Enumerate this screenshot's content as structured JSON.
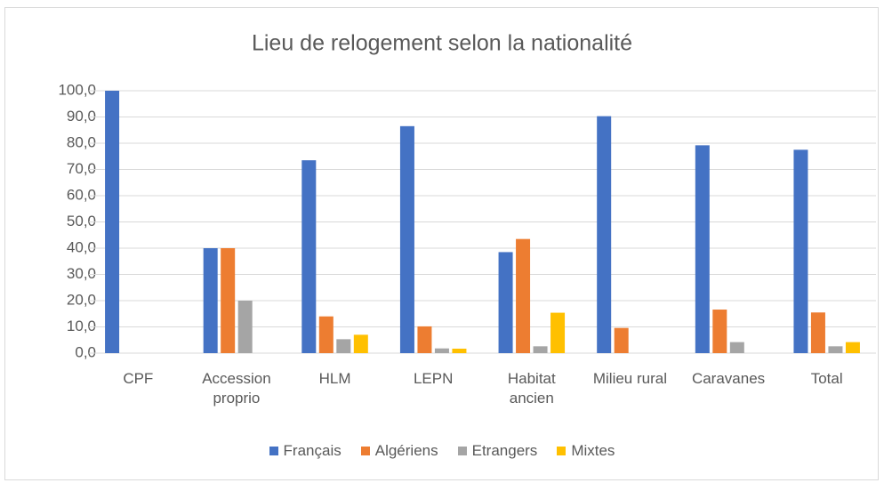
{
  "chart_data": {
    "type": "bar",
    "title": "Lieu de relogement selon la nationalité",
    "categories": [
      "CPF",
      "Accession proprio",
      "HLM",
      "LEPN",
      "Habitat ancien",
      "Milieu rural",
      "Caravanes",
      "Total"
    ],
    "series": [
      {
        "name": "Français",
        "color": "#4472c4",
        "values": [
          100,
          40,
          73.5,
          86.5,
          38.5,
          90.3,
          79.2,
          77.5
        ]
      },
      {
        "name": "Algériens",
        "color": "#ed7d31",
        "values": [
          0,
          40,
          14,
          10.2,
          43.5,
          9.6,
          16.6,
          15.5
        ]
      },
      {
        "name": "Etrangers",
        "color": "#a5a5a5",
        "values": [
          0,
          20,
          5.3,
          1.8,
          2.6,
          0,
          4.2,
          2.6
        ]
      },
      {
        "name": "Mixtes",
        "color": "#ffc000",
        "values": [
          0,
          0,
          7,
          1.7,
          15.4,
          0,
          0,
          4.2
        ]
      }
    ],
    "ylim": [
      0,
      100
    ],
    "yticks": [
      {
        "value": 0,
        "label": "0,0"
      },
      {
        "value": 10,
        "label": "10,0"
      },
      {
        "value": 20,
        "label": "20,0"
      },
      {
        "value": 30,
        "label": "30,0"
      },
      {
        "value": 40,
        "label": "40,0"
      },
      {
        "value": 50,
        "label": "50,0"
      },
      {
        "value": 60,
        "label": "60,0"
      },
      {
        "value": 70,
        "label": "70,0"
      },
      {
        "value": 80,
        "label": "80,0"
      },
      {
        "value": 90,
        "label": "90,0"
      },
      {
        "value": 100,
        "label": "100,0"
      }
    ],
    "grid": true,
    "legend": "bottom"
  }
}
